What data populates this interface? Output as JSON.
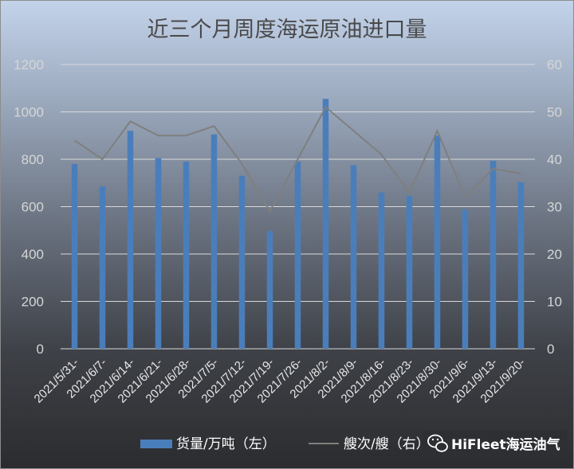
{
  "chart_data": {
    "type": "bar",
    "title": "近三个月周度海运原油进口量",
    "categories": [
      "2021/5/31-",
      "2021/6/7-",
      "2021/6/14-",
      "2021/6/21-",
      "2021/6/28-",
      "2021/7/5-",
      "2021/7/12-",
      "2021/7/19-",
      "2021/7/26-",
      "2021/8/2-",
      "2021/8/9-",
      "2021/8/16-",
      "2021/8/23-",
      "2021/8/30-",
      "2021/9/6-",
      "2021/9/13-",
      "2021/9/20-"
    ],
    "series": [
      {
        "name": "货量/万吨（左）",
        "type": "bar",
        "axis": "left",
        "color": "#4a7ebb",
        "values": [
          780,
          685,
          920,
          805,
          790,
          905,
          730,
          497,
          790,
          1055,
          775,
          660,
          645,
          900,
          588,
          793,
          703
        ]
      },
      {
        "name": "艘次/艘（右）",
        "type": "line",
        "axis": "right",
        "color": "#7f7f7f",
        "values": [
          44,
          40,
          48,
          45,
          45,
          47,
          39,
          29,
          40,
          51,
          46,
          41,
          33,
          46,
          32,
          38,
          37
        ]
      }
    ],
    "y_left": {
      "min": 0,
      "max": 1200,
      "ticks": [
        "0",
        "200",
        "400",
        "600",
        "800",
        "1000",
        "1200"
      ]
    },
    "y_right": {
      "min": 0,
      "max": 60,
      "ticks": [
        "0",
        "10",
        "20",
        "30",
        "40",
        "50",
        "60"
      ]
    },
    "grid": true,
    "legend": "bottom"
  },
  "watermark": {
    "text": "HiFleet海运油气",
    "icon": "wechat-icon"
  }
}
